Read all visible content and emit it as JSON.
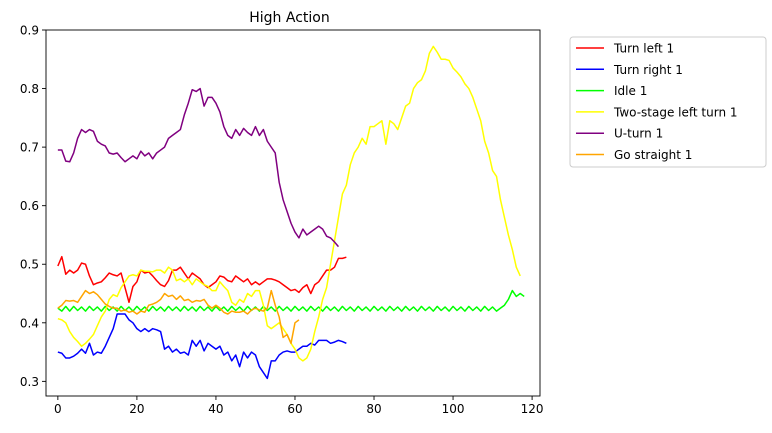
{
  "chart_data": {
    "type": "line",
    "title": "High Action",
    "xlabel": "",
    "ylabel": "",
    "xlim": [
      -3,
      122
    ],
    "ylim": [
      0.275,
      0.9
    ],
    "xticks": [
      0,
      20,
      40,
      60,
      80,
      100,
      120
    ],
    "yticks": [
      0.3,
      0.4,
      0.5,
      0.6,
      0.7,
      0.8,
      0.9
    ],
    "grid": false,
    "legend_position": "outside-right-top",
    "series": [
      {
        "name": "Turn left 1",
        "color": "#ff0000",
        "values": [
          0.497,
          0.513,
          0.483,
          0.49,
          0.485,
          0.49,
          0.502,
          0.5,
          0.48,
          0.465,
          0.468,
          0.47,
          0.477,
          0.485,
          0.482,
          0.48,
          0.485,
          0.46,
          0.435,
          0.462,
          0.47,
          0.49,
          0.485,
          0.487,
          0.48,
          0.472,
          0.465,
          0.462,
          0.472,
          0.49,
          0.49,
          0.495,
          0.485,
          0.475,
          0.485,
          0.48,
          0.475,
          0.465,
          0.46,
          0.465,
          0.47,
          0.48,
          0.478,
          0.472,
          0.47,
          0.48,
          0.475,
          0.47,
          0.475,
          0.465,
          0.47,
          0.465,
          0.47,
          0.475,
          0.475,
          0.473,
          0.47,
          0.465,
          0.46,
          0.455,
          0.457,
          0.452,
          0.46,
          0.465,
          0.45,
          0.465,
          0.47,
          0.48,
          0.49,
          0.49,
          0.495,
          0.51,
          0.51,
          0.512
        ]
      },
      {
        "name": "Turn right 1",
        "color": "#0000ff",
        "values": [
          0.35,
          0.348,
          0.34,
          0.34,
          0.343,
          0.348,
          0.355,
          0.348,
          0.365,
          0.345,
          0.35,
          0.348,
          0.36,
          0.375,
          0.39,
          0.415,
          0.415,
          0.415,
          0.405,
          0.4,
          0.39,
          0.385,
          0.39,
          0.385,
          0.39,
          0.388,
          0.385,
          0.355,
          0.36,
          0.35,
          0.355,
          0.348,
          0.35,
          0.345,
          0.37,
          0.36,
          0.37,
          0.352,
          0.365,
          0.36,
          0.355,
          0.36,
          0.345,
          0.35,
          0.335,
          0.345,
          0.325,
          0.35,
          0.34,
          0.35,
          0.345,
          0.325,
          0.315,
          0.305,
          0.335,
          0.335,
          0.345,
          0.35,
          0.352,
          0.35,
          0.35,
          0.355,
          0.36,
          0.36,
          0.365,
          0.362,
          0.37,
          0.37,
          0.37,
          0.365,
          0.367,
          0.37,
          0.368,
          0.365
        ]
      },
      {
        "name": "Idle 1",
        "color": "#00ff00",
        "values": [
          0.425,
          0.42,
          0.428,
          0.42,
          0.428,
          0.421,
          0.427,
          0.42,
          0.428,
          0.421,
          0.427,
          0.42,
          0.428,
          0.421,
          0.427,
          0.42,
          0.428,
          0.421,
          0.427,
          0.42,
          0.428,
          0.421,
          0.427,
          0.42,
          0.428,
          0.421,
          0.427,
          0.42,
          0.428,
          0.421,
          0.427,
          0.42,
          0.428,
          0.421,
          0.427,
          0.42,
          0.428,
          0.421,
          0.427,
          0.42,
          0.428,
          0.421,
          0.427,
          0.42,
          0.428,
          0.421,
          0.427,
          0.42,
          0.428,
          0.421,
          0.427,
          0.42,
          0.428,
          0.421,
          0.427,
          0.42,
          0.428,
          0.421,
          0.427,
          0.42,
          0.428,
          0.421,
          0.427,
          0.42,
          0.428,
          0.421,
          0.427,
          0.42,
          0.428,
          0.421,
          0.427,
          0.42,
          0.428,
          0.421,
          0.427,
          0.42,
          0.428,
          0.421,
          0.427,
          0.42,
          0.428,
          0.421,
          0.427,
          0.42,
          0.428,
          0.421,
          0.427,
          0.42,
          0.428,
          0.421,
          0.427,
          0.42,
          0.428,
          0.421,
          0.427,
          0.42,
          0.428,
          0.421,
          0.427,
          0.42,
          0.428,
          0.421,
          0.427,
          0.42,
          0.428,
          0.421,
          0.427,
          0.42,
          0.428,
          0.421,
          0.427,
          0.42,
          0.425,
          0.43,
          0.44,
          0.455,
          0.445,
          0.45,
          0.445
        ]
      },
      {
        "name": "Two-stage left turn 1",
        "color": "#ffff00",
        "values": [
          0.407,
          0.405,
          0.4,
          0.385,
          0.375,
          0.368,
          0.36,
          0.365,
          0.372,
          0.38,
          0.395,
          0.41,
          0.42,
          0.44,
          0.448,
          0.445,
          0.46,
          0.47,
          0.48,
          0.482,
          0.48,
          0.49,
          0.488,
          0.488,
          0.487,
          0.49,
          0.49,
          0.485,
          0.495,
          0.49,
          0.472,
          0.475,
          0.47,
          0.475,
          0.465,
          0.475,
          0.47,
          0.465,
          0.462,
          0.455,
          0.455,
          0.47,
          0.462,
          0.455,
          0.435,
          0.43,
          0.44,
          0.435,
          0.45,
          0.445,
          0.455,
          0.455,
          0.43,
          0.395,
          0.39,
          0.395,
          0.4,
          0.39,
          0.38,
          0.365,
          0.355,
          0.34,
          0.335,
          0.34,
          0.355,
          0.385,
          0.41,
          0.44,
          0.46,
          0.5,
          0.54,
          0.58,
          0.62,
          0.635,
          0.67,
          0.69,
          0.7,
          0.715,
          0.705,
          0.735,
          0.735,
          0.74,
          0.745,
          0.705,
          0.745,
          0.74,
          0.73,
          0.75,
          0.77,
          0.775,
          0.8,
          0.81,
          0.815,
          0.83,
          0.86,
          0.872,
          0.862,
          0.85,
          0.85,
          0.848,
          0.835,
          0.828,
          0.82,
          0.808,
          0.8,
          0.785,
          0.765,
          0.745,
          0.71,
          0.69,
          0.66,
          0.65,
          0.61,
          0.58,
          0.55,
          0.525,
          0.495,
          0.48
        ]
      },
      {
        "name": "U-turn 1",
        "color": "#800080",
        "values": [
          0.695,
          0.695,
          0.676,
          0.675,
          0.69,
          0.715,
          0.73,
          0.725,
          0.73,
          0.727,
          0.71,
          0.705,
          0.702,
          0.69,
          0.688,
          0.69,
          0.682,
          0.675,
          0.68,
          0.685,
          0.68,
          0.693,
          0.685,
          0.69,
          0.68,
          0.69,
          0.695,
          0.7,
          0.715,
          0.72,
          0.725,
          0.73,
          0.755,
          0.775,
          0.798,
          0.795,
          0.8,
          0.77,
          0.785,
          0.785,
          0.775,
          0.76,
          0.735,
          0.72,
          0.715,
          0.73,
          0.72,
          0.732,
          0.725,
          0.72,
          0.735,
          0.72,
          0.73,
          0.71,
          0.7,
          0.69,
          0.64,
          0.61,
          0.59,
          0.57,
          0.555,
          0.545,
          0.56,
          0.55,
          0.555,
          0.56,
          0.565,
          0.56,
          0.548,
          0.545,
          0.538,
          0.53
        ]
      },
      {
        "name": "Go straight 1",
        "color": "#ffa500",
        "values": [
          0.425,
          0.43,
          0.438,
          0.437,
          0.438,
          0.435,
          0.445,
          0.455,
          0.45,
          0.453,
          0.448,
          0.44,
          0.432,
          0.428,
          0.425,
          0.425,
          0.42,
          0.422,
          0.418,
          0.42,
          0.415,
          0.42,
          0.418,
          0.43,
          0.432,
          0.435,
          0.44,
          0.45,
          0.445,
          0.447,
          0.44,
          0.446,
          0.438,
          0.44,
          0.435,
          0.438,
          0.437,
          0.44,
          0.43,
          0.425,
          0.43,
          0.425,
          0.418,
          0.415,
          0.42,
          0.418,
          0.418,
          0.42,
          0.415,
          0.422,
          0.425,
          0.422,
          0.42,
          0.425,
          0.455,
          0.43,
          0.41,
          0.375,
          0.38,
          0.365,
          0.4,
          0.405
        ]
      }
    ]
  }
}
